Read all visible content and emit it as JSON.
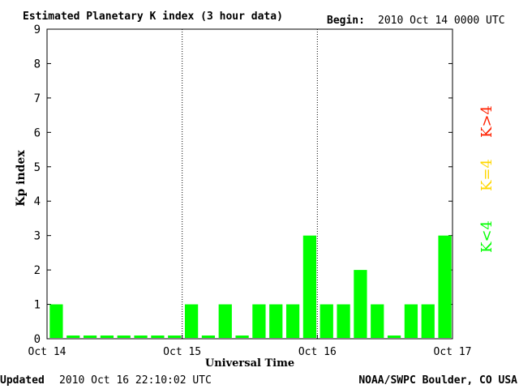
{
  "header": {
    "title": "Estimated Planetary K index (3 hour data)",
    "begin_label": "Begin:",
    "begin_value": "2010 Oct 14 0000 UTC"
  },
  "footer": {
    "updated_label": "Updated",
    "updated_value": "2010 Oct 16 22:10:02 UTC",
    "credit": "NOAA/SWPC Boulder, CO USA"
  },
  "legend": {
    "items": [
      {
        "label": "K<4",
        "color": "#00ff00"
      },
      {
        "label": "K=4",
        "color": "#ffd700"
      },
      {
        "label": "K>4",
        "color": "#ff2000"
      }
    ]
  },
  "chart_data": {
    "type": "bar",
    "title": "Estimated Planetary K index (3 hour data)",
    "xlabel": "Universal Time",
    "ylabel": "Kp index",
    "ylim": [
      0,
      9
    ],
    "yticks": [
      0,
      1,
      2,
      3,
      4,
      5,
      6,
      7,
      8,
      9
    ],
    "xlim": [
      0,
      72
    ],
    "xticks": [
      {
        "hour": 0,
        "label": "Oct 14"
      },
      {
        "hour": 24,
        "label": "Oct 15"
      },
      {
        "hour": 48,
        "label": "Oct 16"
      },
      {
        "hour": 72,
        "label": "Oct 17"
      }
    ],
    "day_dividers": [
      24,
      48
    ],
    "interval_hours": 3,
    "values": [
      1,
      0,
      0,
      0,
      0,
      0,
      0,
      0,
      1,
      0,
      1,
      0,
      1,
      1,
      1,
      3,
      1,
      1,
      2,
      1,
      0,
      1,
      1,
      3
    ],
    "bar_color": "#00ff00",
    "grid": false
  }
}
